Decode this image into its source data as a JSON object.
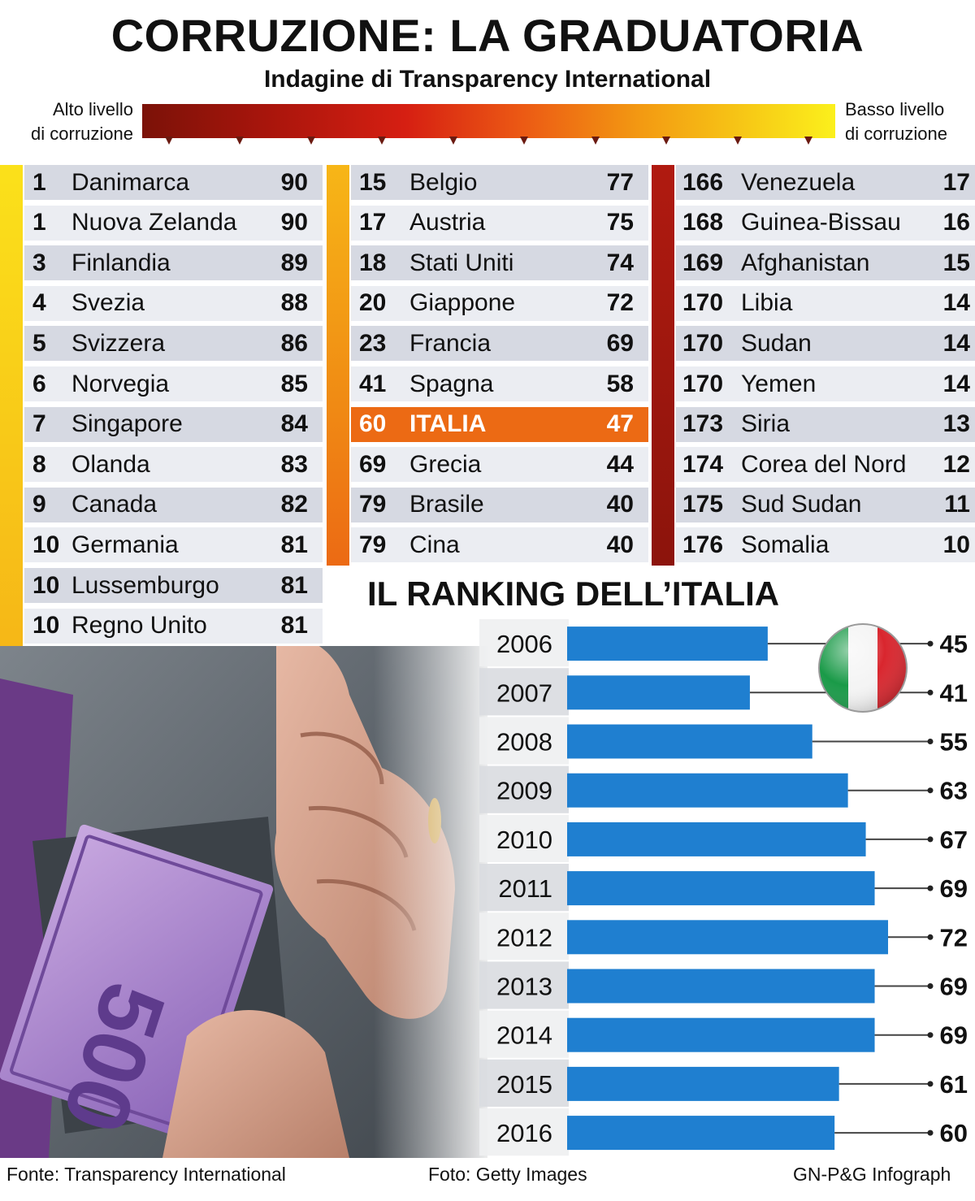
{
  "header": {
    "title": "CORRUZIONE: LA GRADUATORIA",
    "subtitle": "Indagine di Transparency International"
  },
  "scale": {
    "left_line1": "Alto livello",
    "left_line2": "di corruzione",
    "right_line1": "Basso livello",
    "right_line2": "di corruzione",
    "gradient_colors": [
      "#7b1208",
      "#d61f12",
      "#ec5a14",
      "#f39a12",
      "#fbf01c"
    ]
  },
  "colors": {
    "row_dark": "#d6d9e2",
    "row_light": "#ebedf2",
    "highlight": "#ec6a14",
    "bar_blue": "#1f7fd0",
    "col1_accent": "#f8c818",
    "col2_accent_top": "#f5a516",
    "col2_accent_bottom": "#ec6a14",
    "col3_accent": "#a81510"
  },
  "table": {
    "col1": [
      {
        "rank": "1",
        "country": "Danimarca",
        "score": "90"
      },
      {
        "rank": "1",
        "country": "Nuova Zelanda",
        "score": "90"
      },
      {
        "rank": "3",
        "country": "Finlandia",
        "score": "89"
      },
      {
        "rank": "4",
        "country": "Svezia",
        "score": "88"
      },
      {
        "rank": "5",
        "country": "Svizzera",
        "score": "86"
      },
      {
        "rank": "6",
        "country": "Norvegia",
        "score": "85"
      },
      {
        "rank": "7",
        "country": "Singapore",
        "score": "84"
      },
      {
        "rank": "8",
        "country": "Olanda",
        "score": "83"
      },
      {
        "rank": "9",
        "country": "Canada",
        "score": "82"
      },
      {
        "rank": "10",
        "country": "Germania",
        "score": "81"
      },
      {
        "rank": "10",
        "country": "Lussemburgo",
        "score": "81"
      },
      {
        "rank": "10",
        "country": "Regno Unito",
        "score": "81"
      }
    ],
    "col2": [
      {
        "rank": "15",
        "country": "Belgio",
        "score": "77"
      },
      {
        "rank": "17",
        "country": "Austria",
        "score": "75"
      },
      {
        "rank": "18",
        "country": "Stati Uniti",
        "score": "74"
      },
      {
        "rank": "20",
        "country": "Giappone",
        "score": "72"
      },
      {
        "rank": "23",
        "country": "Francia",
        "score": "69"
      },
      {
        "rank": "41",
        "country": "Spagna",
        "score": "58"
      },
      {
        "rank": "60",
        "country": "ITALIA",
        "score": "47",
        "highlight": true
      },
      {
        "rank": "69",
        "country": "Grecia",
        "score": "44"
      },
      {
        "rank": "79",
        "country": "Brasile",
        "score": "40"
      },
      {
        "rank": "79",
        "country": "Cina",
        "score": "40"
      }
    ],
    "col3": [
      {
        "rank": "166",
        "country": "Venezuela",
        "score": "17"
      },
      {
        "rank": "168",
        "country": "Guinea-Bissau",
        "score": "16"
      },
      {
        "rank": "169",
        "country": "Afghanistan",
        "score": "15"
      },
      {
        "rank": "170",
        "country": "Libia",
        "score": "14"
      },
      {
        "rank": "170",
        "country": "Sudan",
        "score": "14"
      },
      {
        "rank": "170",
        "country": "Yemen",
        "score": "14"
      },
      {
        "rank": "173",
        "country": "Siria",
        "score": "13"
      },
      {
        "rank": "174",
        "country": "Corea del Nord",
        "score": "12"
      },
      {
        "rank": "175",
        "country": "Sud Sudan",
        "score": "11"
      },
      {
        "rank": "176",
        "country": "Somalia",
        "score": "10"
      }
    ]
  },
  "chart_data": {
    "type": "bar",
    "orientation": "horizontal",
    "title": "IL RANKING DELL’ITALIA",
    "categories": [
      "2006",
      "2007",
      "2008",
      "2009",
      "2010",
      "2011",
      "2012",
      "2013",
      "2014",
      "2015",
      "2016"
    ],
    "values": [
      45,
      41,
      55,
      63,
      67,
      69,
      72,
      69,
      69,
      61,
      60
    ],
    "data_labels": [
      "45",
      "41",
      "55",
      "63",
      "67",
      "69",
      "72",
      "69",
      "69",
      "61",
      "60"
    ],
    "xlim": [
      0,
      80
    ],
    "grid": false,
    "legend": "none",
    "color": "#1f7fd0"
  },
  "footer": {
    "source": "Fonte: Transparency International",
    "photo": "Foto: Getty Images",
    "credit": "GN-P&G Infograph"
  },
  "icons": {
    "flag": "italy-flag-icon",
    "photo": "money-in-pocket-photo"
  }
}
